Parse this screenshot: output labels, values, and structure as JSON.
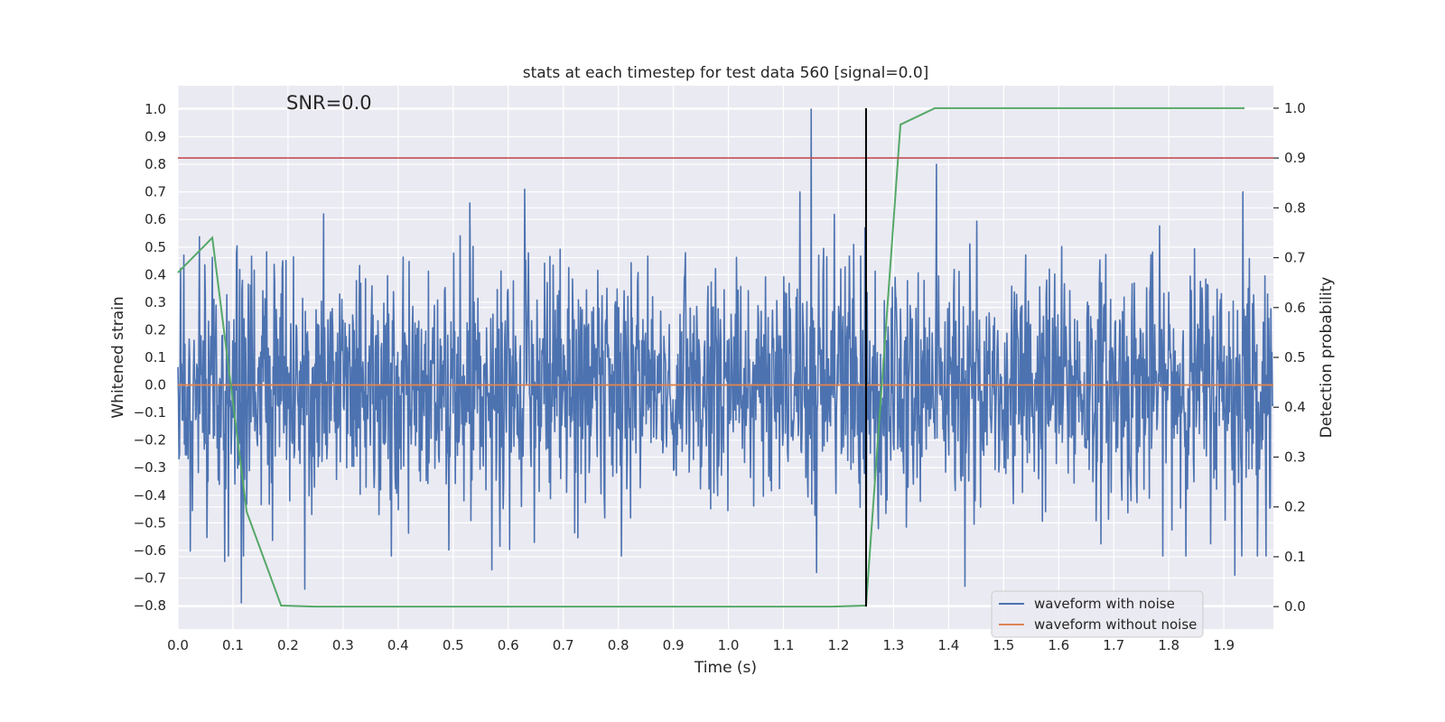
{
  "chart_data": {
    "type": "line",
    "title": "stats at each timestep for test data 560 [signal=0.0]",
    "xlabel": "Time (s)",
    "ylabel": "Whitened strain",
    "y2label": "Detection probability",
    "annotation": "SNR=0.0",
    "xlim": [
      0.0,
      1.99
    ],
    "ylim": [
      -0.885,
      1.085
    ],
    "y2lim": [
      -0.045,
      1.045
    ],
    "xticks": [
      0.0,
      0.1,
      0.2,
      0.3,
      0.4,
      0.5,
      0.6,
      0.7,
      0.8,
      0.9,
      1.0,
      1.1,
      1.2,
      1.3,
      1.4,
      1.5,
      1.6,
      1.7,
      1.8,
      1.9
    ],
    "xtick_labels": [
      "0.0",
      "0.1",
      "0.2",
      "0.3",
      "0.4",
      "0.5",
      "0.6",
      "0.7",
      "0.8",
      "0.9",
      "1.0",
      "1.1",
      "1.2",
      "1.3",
      "1.4",
      "1.5",
      "1.6",
      "1.7",
      "1.8",
      "1.9"
    ],
    "yticks": [
      -0.8,
      -0.7,
      -0.6,
      -0.5,
      -0.4,
      -0.3,
      -0.2,
      -0.1,
      0.0,
      0.1,
      0.2,
      0.3,
      0.4,
      0.5,
      0.6,
      0.7,
      0.8,
      0.9,
      1.0
    ],
    "ytick_labels": [
      "−0.8",
      "−0.7",
      "−0.6",
      "−0.5",
      "−0.4",
      "−0.3",
      "−0.2",
      "−0.1",
      "0.0",
      "0.1",
      "0.2",
      "0.3",
      "0.4",
      "0.5",
      "0.6",
      "0.7",
      "0.8",
      "0.9",
      "1.0"
    ],
    "y2ticks": [
      0.0,
      0.1,
      0.2,
      0.3,
      0.4,
      0.5,
      0.6,
      0.7,
      0.8,
      0.9,
      1.0
    ],
    "y2tick_labels": [
      "0.0",
      "0.1",
      "0.2",
      "0.3",
      "0.4",
      "0.5",
      "0.6",
      "0.7",
      "0.8",
      "0.9",
      "1.0"
    ],
    "grid": true,
    "legend_position": "bottom-right",
    "series": [
      {
        "name": "waveform with noise",
        "axis": "left",
        "color": "#4c72b0",
        "style": "noise",
        "n_samples": 2048,
        "x_range": [
          0.0,
          2.0
        ],
        "seed": 560,
        "std": 0.22,
        "peaks": [
          {
            "x": 1.15,
            "y": 1.0
          },
          {
            "x": 1.248,
            "y": 0.57
          },
          {
            "x": 1.25,
            "y": -0.78
          },
          {
            "x": 1.378,
            "y": 0.8
          },
          {
            "x": 0.63,
            "y": 0.71
          },
          {
            "x": 0.53,
            "y": 0.66
          },
          {
            "x": 1.935,
            "y": 0.7
          },
          {
            "x": 1.13,
            "y": 0.7
          },
          {
            "x": 0.115,
            "y": -0.79
          },
          {
            "x": 0.085,
            "y": -0.64
          },
          {
            "x": 0.23,
            "y": -0.74
          },
          {
            "x": 1.92,
            "y": -0.69
          },
          {
            "x": 1.43,
            "y": -0.73
          },
          {
            "x": 0.57,
            "y": -0.67
          },
          {
            "x": 1.16,
            "y": -0.68
          }
        ]
      },
      {
        "name": "waveform without noise",
        "axis": "left",
        "color": "#dd8452",
        "x": [
          0.0,
          2.0
        ],
        "y": [
          0.0,
          0.0
        ]
      },
      {
        "name": "detection probability",
        "axis": "right",
        "color": "#55a868",
        "x": [
          0.0,
          0.0625,
          0.125,
          0.1875,
          0.25,
          0.3125,
          0.5,
          0.75,
          1.0,
          1.1875,
          1.25,
          1.3125,
          1.375,
          1.6,
          1.8,
          1.9375
        ],
        "y": [
          0.67,
          0.74,
          0.19,
          0.002,
          0.0,
          0.0,
          0.0,
          0.0,
          0.0,
          0.0,
          0.002,
          0.967,
          1.0,
          1.0,
          1.0,
          1.0
        ]
      }
    ],
    "threshold": {
      "axis": "right",
      "value": 0.9,
      "color": "#c44e52"
    },
    "marker_line": {
      "x": 1.25,
      "color": "#000000"
    }
  }
}
